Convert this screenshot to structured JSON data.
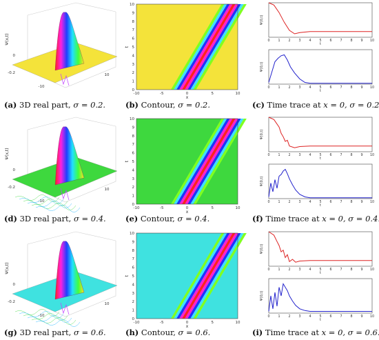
{
  "captions": {
    "a": {
      "tag": "(a)",
      "text": "3D real part,",
      "param": "σ = 0.2."
    },
    "b": {
      "tag": "(b)",
      "text": "Contour,",
      "param": "σ = 0.2."
    },
    "c": {
      "tag": "(c)",
      "text": "Time trace at",
      "param": "x = 0, σ = 0.2."
    },
    "d": {
      "tag": "(d)",
      "text": "3D real part,",
      "param": "σ = 0.4."
    },
    "e": {
      "tag": "(e)",
      "text": "Contour,",
      "param": "σ = 0.4."
    },
    "f": {
      "tag": "(f)",
      "text": "Time trace at",
      "param": "x = 0, σ = 0.4."
    },
    "g": {
      "tag": "(g)",
      "text": "3D real part,",
      "param": "σ = 0.6."
    },
    "h": {
      "tag": "(h)",
      "text": "Contour,",
      "param": "σ = 0.6."
    },
    "i": {
      "tag": "(i)",
      "text": "Time trace at",
      "param": "x = 0, σ = 0.6."
    }
  },
  "colors": {
    "background_02": "#f4e33a",
    "background_04": "#3ed83e",
    "background_06": "#3fe2e0",
    "trace_red": "#dd2222",
    "trace_blue": "#2222cc"
  },
  "chart_data": [
    {
      "type": "surface",
      "sigma": 0.2,
      "zlabel": "Ψ(x,t)"
    },
    {
      "type": "heatmap",
      "sigma": 0.2,
      "xlabel": "x",
      "ylabel": "t",
      "xlim": [
        -10,
        10
      ],
      "ylim": [
        0,
        10
      ],
      "xticks": [
        "-10",
        "-5",
        "0",
        "5",
        "10"
      ],
      "yticks": [
        "0",
        "1",
        "2",
        "3",
        "4",
        "5",
        "6",
        "7",
        "8",
        "9",
        "10"
      ]
    },
    {
      "type": "line",
      "sigma": 0.2,
      "subplots": [
        {
          "ylabel": "Ψ(0,t)",
          "xlabel": "t",
          "xlim": [
            0,
            10
          ],
          "ylim": [
            -0.1,
            0.5
          ],
          "series": [
            {
              "x": [
                0,
                0.5,
                1,
                1.5,
                2,
                2.5,
                3,
                4,
                5,
                6,
                7,
                8,
                9,
                10
              ],
              "y": [
                0.5,
                0.46,
                0.33,
                0.16,
                0.02,
                -0.04,
                -0.02,
                0.0,
                0.0,
                0.0,
                0.0,
                0.0,
                0.0,
                0.0
              ]
            }
          ]
        },
        {
          "ylabel": "Ψ(0,t)",
          "xlabel": "t",
          "xlim": [
            0,
            10
          ],
          "ylim": [
            0,
            0.4
          ],
          "series": [
            {
              "x": [
                0,
                0.3,
                0.6,
                0.9,
                1.2,
                1.5,
                1.8,
                2.1,
                2.5,
                3,
                3.5,
                4,
                5,
                6,
                7,
                8,
                9,
                10
              ],
              "y": [
                0.02,
                0.14,
                0.26,
                0.3,
                0.33,
                0.34,
                0.28,
                0.2,
                0.13,
                0.06,
                0.02,
                0.01,
                0.01,
                0.01,
                0.01,
                0.01,
                0.01,
                0.01
              ]
            }
          ]
        }
      ]
    },
    {
      "type": "surface",
      "sigma": 0.4,
      "zlabel": "Ψ(x,t)"
    },
    {
      "type": "heatmap",
      "sigma": 0.4,
      "xlabel": "x",
      "ylabel": "t",
      "xlim": [
        -10,
        10
      ],
      "ylim": [
        0,
        10
      ]
    },
    {
      "type": "line",
      "sigma": 0.4,
      "subplots": [
        {
          "ylabel": "Ψ(0,t)",
          "xlabel": "t",
          "xlim": [
            0,
            10
          ],
          "ylim": [
            -0.1,
            0.5
          ],
          "series": [
            {
              "x": [
                0,
                0.5,
                1,
                1.2,
                1.4,
                1.6,
                1.8,
                2,
                2.5,
                3,
                4,
                5,
                6,
                7,
                8,
                9,
                10
              ],
              "y": [
                0.5,
                0.46,
                0.33,
                0.22,
                0.16,
                0.08,
                0.1,
                0.0,
                -0.03,
                -0.01,
                0.0,
                0.0,
                0.0,
                0.0,
                0.0,
                0.0,
                0.0
              ]
            }
          ]
        },
        {
          "ylabel": "Ψ(0,t)",
          "xlabel": "t",
          "xlim": [
            0,
            10
          ],
          "ylim": [
            0,
            0.4
          ],
          "series": [
            {
              "x": [
                0,
                0.2,
                0.4,
                0.6,
                0.8,
                1,
                1.2,
                1.4,
                1.6,
                1.8,
                2,
                2.3,
                2.6,
                3,
                3.5,
                4,
                5,
                6,
                7,
                8,
                9,
                10
              ],
              "y": [
                0.02,
                0.18,
                0.08,
                0.22,
                0.12,
                0.26,
                0.28,
                0.32,
                0.34,
                0.29,
                0.23,
                0.16,
                0.1,
                0.05,
                0.02,
                0.01,
                0.01,
                0.01,
                0.01,
                0.01,
                0.01,
                0.01
              ]
            }
          ]
        }
      ]
    },
    {
      "type": "surface",
      "sigma": 0.6,
      "zlabel": "Ψ(x,t)"
    },
    {
      "type": "heatmap",
      "sigma": 0.6,
      "xlabel": "x",
      "ylabel": "t",
      "xlim": [
        -10,
        10
      ],
      "ylim": [
        0,
        10
      ]
    },
    {
      "type": "line",
      "sigma": 0.6,
      "subplots": [
        {
          "ylabel": "Ψ(0,t)",
          "xlabel": "t",
          "xlim": [
            0,
            10
          ],
          "ylim": [
            -0.1,
            0.5
          ],
          "series": [
            {
              "x": [
                0,
                0.5,
                0.8,
                1,
                1.2,
                1.4,
                1.6,
                1.8,
                2,
                2.3,
                2.6,
                3,
                4,
                5,
                6,
                7,
                8,
                9,
                10
              ],
              "y": [
                0.5,
                0.44,
                0.33,
                0.26,
                0.15,
                0.18,
                0.05,
                0.1,
                -0.02,
                0.02,
                -0.03,
                -0.01,
                0.0,
                0.0,
                0.0,
                0.0,
                0.0,
                0.0,
                0.0
              ]
            }
          ]
        },
        {
          "ylabel": "Ψ(0,t)",
          "xlabel": "t",
          "xlim": [
            0,
            10
          ],
          "ylim": [
            0,
            0.4
          ],
          "series": [
            {
              "x": [
                0,
                0.2,
                0.4,
                0.6,
                0.8,
                1,
                1.2,
                1.4,
                1.6,
                1.8,
                2,
                2.3,
                2.6,
                3,
                3.5,
                4,
                5,
                6,
                7,
                8,
                9,
                10
              ],
              "y": [
                0.02,
                0.2,
                0.05,
                0.24,
                0.08,
                0.3,
                0.2,
                0.34,
                0.3,
                0.26,
                0.2,
                0.14,
                0.09,
                0.05,
                0.03,
                0.02,
                0.02,
                0.02,
                0.02,
                0.02,
                0.02,
                0.02
              ]
            }
          ]
        }
      ]
    }
  ]
}
